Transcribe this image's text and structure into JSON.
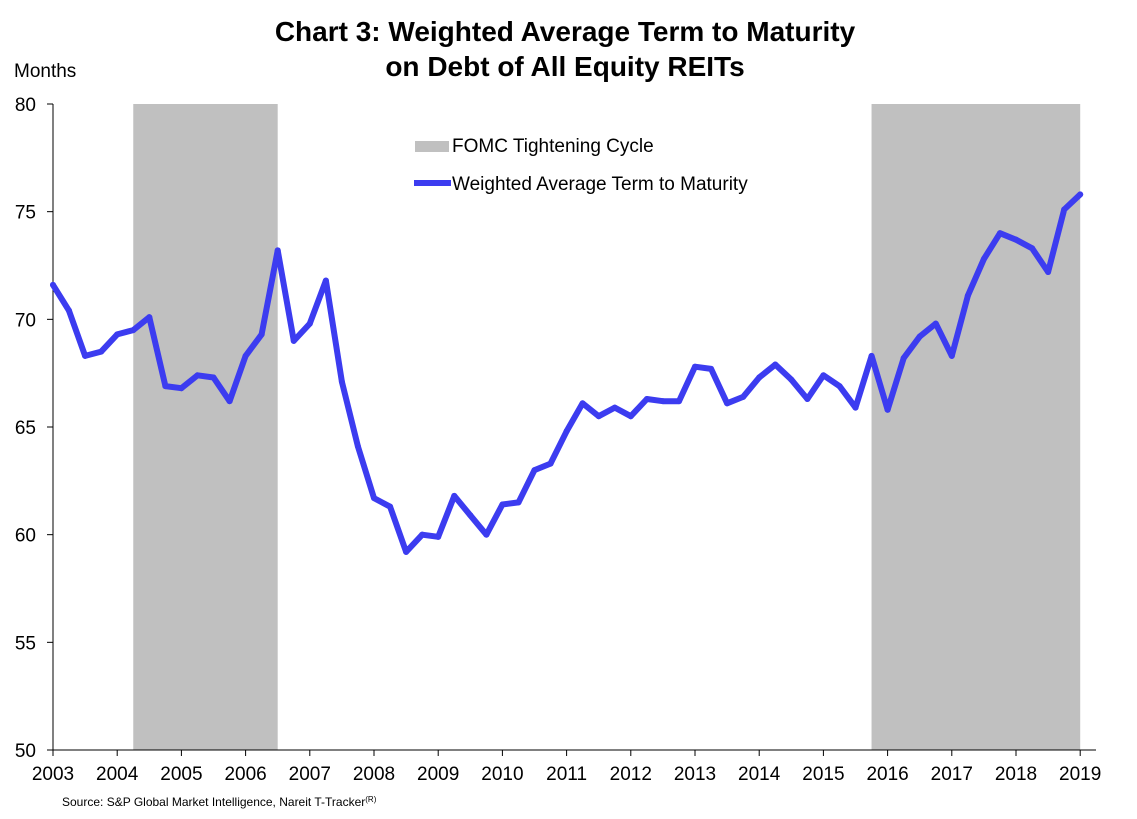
{
  "chart_data": {
    "type": "line",
    "title_line1": "Chart 3: Weighted Average Term to Maturity",
    "title_line2": "on Debt of All Equity REITs",
    "ylabel": "Months",
    "xlabel": "",
    "ylim": [
      50,
      80
    ],
    "yticks": [
      50,
      55,
      60,
      65,
      70,
      75,
      80
    ],
    "xlim": [
      2003.0,
      2019.25
    ],
    "xticks": [
      "2003",
      "2004",
      "2005",
      "2006",
      "2007",
      "2008",
      "2009",
      "2010",
      "2011",
      "2012",
      "2013",
      "2014",
      "2015",
      "2016",
      "2017",
      "2018",
      "2019"
    ],
    "grid": false,
    "legend_position": "top-center",
    "shaded_periods": {
      "name": "FOMC Tightening Cycle",
      "color": "#c0c0c0",
      "ranges": [
        [
          2004.25,
          2006.5
        ],
        [
          2015.75,
          2019.0
        ]
      ]
    },
    "series": [
      {
        "name": "Weighted Average Term to Maturity",
        "color": "#3c3cf0",
        "x": [
          2003.0,
          2003.25,
          2003.5,
          2003.75,
          2004.0,
          2004.25,
          2004.5,
          2004.75,
          2005.0,
          2005.25,
          2005.5,
          2005.75,
          2006.0,
          2006.25,
          2006.5,
          2006.75,
          2007.0,
          2007.25,
          2007.5,
          2007.75,
          2008.0,
          2008.25,
          2008.5,
          2008.75,
          2009.0,
          2009.25,
          2009.5,
          2009.75,
          2010.0,
          2010.25,
          2010.5,
          2010.75,
          2011.0,
          2011.25,
          2011.5,
          2011.75,
          2012.0,
          2012.25,
          2012.5,
          2012.75,
          2013.0,
          2013.25,
          2013.5,
          2013.75,
          2014.0,
          2014.25,
          2014.5,
          2014.75,
          2015.0,
          2015.25,
          2015.5,
          2015.75,
          2016.0,
          2016.25,
          2016.5,
          2016.75,
          2017.0,
          2017.25,
          2017.5,
          2017.75,
          2018.0,
          2018.25,
          2018.5,
          2018.75,
          2019.0
        ],
        "values": [
          71.6,
          70.4,
          68.3,
          68.5,
          69.3,
          69.5,
          70.1,
          66.9,
          66.8,
          67.4,
          67.3,
          66.2,
          68.3,
          69.3,
          73.2,
          69.0,
          69.8,
          71.8,
          67.1,
          64.1,
          61.7,
          61.3,
          59.2,
          60.0,
          59.9,
          61.8,
          60.9,
          60.0,
          61.4,
          61.5,
          63.0,
          63.3,
          64.8,
          66.1,
          65.5,
          65.9,
          65.5,
          66.3,
          66.2,
          66.2,
          67.8,
          67.7,
          66.1,
          66.4,
          67.3,
          67.9,
          67.2,
          66.3,
          67.4,
          66.9,
          65.9,
          68.3,
          65.8,
          68.2,
          69.2,
          69.8,
          68.3,
          71.1,
          72.8,
          74.0,
          73.7,
          73.3,
          72.2,
          75.1,
          75.8
        ]
      }
    ],
    "source": "Source: S&P Global Market Intelligence, Nareit T-Tracker",
    "source_superscript": "(R)"
  }
}
